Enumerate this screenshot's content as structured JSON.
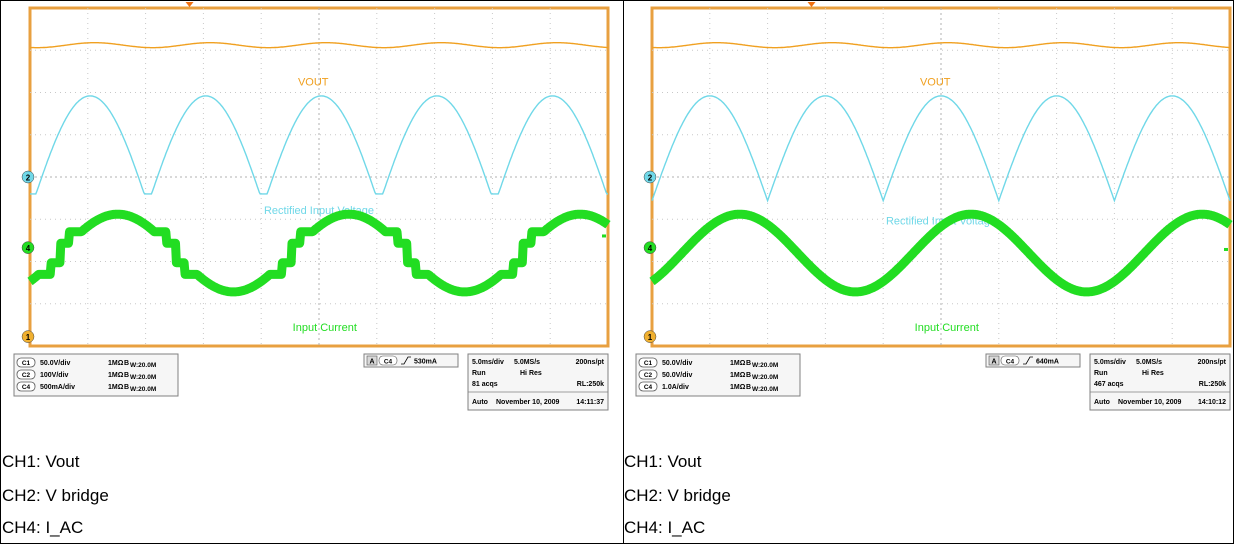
{
  "chart_data": [
    {
      "type": "line",
      "title": "",
      "time_per_div_ms": 5.0,
      "series": [
        {
          "name": "VOUT",
          "channel": "C1",
          "color": "#f0a020",
          "shape": "flat_dc_with_ripple"
        },
        {
          "name": "Rectified Input Voltage",
          "channel": "C2",
          "color": "#70d8e8",
          "shape": "rectified_sine_offset_valley"
        },
        {
          "name": "Input Current",
          "channel": "C4",
          "color": "#22dd22",
          "shape": "sine_with_steps"
        }
      ],
      "labels": {
        "vout": "VOUT",
        "vin": "Rectified Input Voltage",
        "iin": "Input Current"
      },
      "channels": [
        {
          "id": "C1",
          "scale": "50.0V/div",
          "coupling": "1MΩ",
          "bw": "B",
          "bw_value": "W:20.0M"
        },
        {
          "id": "C2",
          "scale": "100V/div",
          "coupling": "1MΩ",
          "bw": "B",
          "bw_value": "W:20.0M"
        },
        {
          "id": "C4",
          "scale": "500mA/div",
          "coupling": "1MΩ",
          "bw": "B",
          "bw_value": "W:20.0M"
        }
      ],
      "trigger": {
        "label": "A",
        "source": "C4",
        "level": "530mA"
      },
      "acq": {
        "timebase": "5.0ms/div",
        "rate": "5.0MS/s",
        "pt": "200ns/pt",
        "mode": "Run",
        "res": "Hi Res",
        "acqs": "81 acqs",
        "rl": "RL:250k",
        "auto": "Auto",
        "date": "November 10, 2009",
        "time": "14:11:37"
      },
      "captions": [
        "CH1: Vout",
        "CH2: V bridge",
        "CH4: I_AC"
      ]
    },
    {
      "type": "line",
      "title": "",
      "time_per_div_ms": 5.0,
      "series": [
        {
          "name": "VOUT",
          "channel": "C1",
          "color": "#f0a020",
          "shape": "flat_dc_with_ripple"
        },
        {
          "name": "Rectified Input Voltage",
          "channel": "C2",
          "color": "#70d8e8",
          "shape": "rectified_sine_zero_valley"
        },
        {
          "name": "Input Current",
          "channel": "C4",
          "color": "#22dd22",
          "shape": "clean_sine"
        }
      ],
      "labels": {
        "vout": "VOUT",
        "vin": "Rectified Input Voltage",
        "iin": "Input Current"
      },
      "channels": [
        {
          "id": "C1",
          "scale": "50.0V/div",
          "coupling": "1MΩ",
          "bw": "B",
          "bw_value": "W:20.0M"
        },
        {
          "id": "C2",
          "scale": "50.0V/div",
          "coupling": "1MΩ",
          "bw": "B",
          "bw_value": "W:20.0M"
        },
        {
          "id": "C4",
          "scale": "1.0A/div",
          "coupling": "1MΩ",
          "bw": "B",
          "bw_value": "W:20.0M"
        }
      ],
      "trigger": {
        "label": "A",
        "source": "C4",
        "level": "640mA"
      },
      "acq": {
        "timebase": "5.0ms/div",
        "rate": "5.0MS/s",
        "pt": "200ns/pt",
        "mode": "Run",
        "res": "Hi Res",
        "acqs": "467 acqs",
        "rl": "RL:250k",
        "auto": "Auto",
        "date": "November 10, 2009",
        "time": "14:10:12"
      },
      "captions": [
        "CH1: Vout",
        "CH2: V bridge",
        "CH4: I_AC"
      ]
    }
  ],
  "colors": {
    "frame": "#e8a040",
    "grid": "#c8c8c8",
    "vout": "#f0a020",
    "vin": "#70d8e8",
    "iin": "#22dd22"
  }
}
